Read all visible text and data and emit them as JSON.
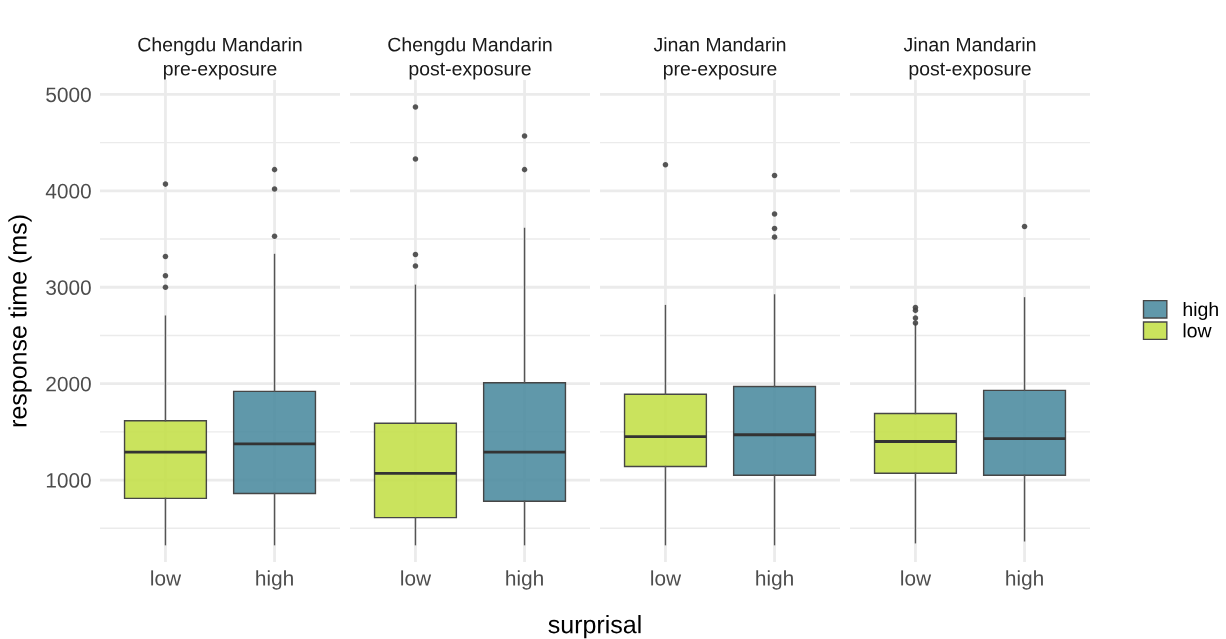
{
  "chart_data": [
    {
      "type": "box",
      "title": "Chengdu Mandarin",
      "subtitle": "pre-exposure",
      "ylabel": "response time (ms)",
      "categories": [
        "low",
        "high"
      ],
      "ylim": [
        150,
        5150
      ],
      "yticks": [
        1000,
        2000,
        3000,
        4000,
        5000
      ],
      "grid": true,
      "tick_labels": "xy",
      "series": [
        {
          "color": "#4f8da1",
          "boxes": [
            null,
            {
              "low": 330,
              "q1": 860,
              "median": 1375,
              "q3": 1920,
              "high": 3340,
              "outliers": [
                3530,
                4020,
                4220
              ]
            }
          ]
        },
        {
          "color": "#c5e04c",
          "boxes": [
            {
              "low": 330,
              "q1": 810,
              "median": 1290,
              "q3": 1615,
              "high": 2700,
              "outliers": [
                3000,
                3120,
                3320,
                4070
              ]
            },
            null
          ]
        }
      ]
    },
    {
      "type": "box",
      "title": "Chengdu Mandarin",
      "subtitle": "post-exposure",
      "xlabel": "surprisal",
      "categories": [
        "low",
        "high"
      ],
      "ylim": [
        150,
        5150
      ],
      "yticks": [
        1000,
        2000,
        3000,
        4000,
        5000
      ],
      "grid": true,
      "tick_labels": "x",
      "series": [
        {
          "color": "#4f8da1",
          "boxes": [
            null,
            {
              "low": 330,
              "q1": 780,
              "median": 1290,
              "q3": 2010,
              "high": 3610,
              "outliers": [
                4220,
                4570
              ]
            }
          ]
        },
        {
          "color": "#c5e04c",
          "boxes": [
            {
              "low": 330,
              "q1": 610,
              "median": 1070,
              "q3": 1590,
              "high": 3020,
              "outliers": [
                3220,
                3340,
                4330,
                4870
              ]
            },
            null
          ]
        }
      ]
    },
    {
      "type": "box",
      "title": "Jinan Mandarin",
      "subtitle": "pre-exposure",
      "categories": [
        "low",
        "high"
      ],
      "ylim": [
        150,
        5150
      ],
      "yticks": [
        1000,
        2000,
        3000,
        4000,
        5000
      ],
      "grid": true,
      "tick_labels": "x",
      "series": [
        {
          "color": "#4f8da1",
          "boxes": [
            null,
            {
              "low": 330,
              "q1": 1050,
              "median": 1470,
              "q3": 1970,
              "high": 2920,
              "outliers": [
                3520,
                3610,
                3760,
                4160
              ]
            }
          ]
        },
        {
          "color": "#c5e04c",
          "boxes": [
            {
              "low": 330,
              "q1": 1140,
              "median": 1450,
              "q3": 1890,
              "high": 2810,
              "outliers": [
                4270
              ]
            },
            null
          ]
        }
      ]
    },
    {
      "type": "box",
      "title": "Jinan Mandarin",
      "subtitle": "post-exposure",
      "categories": [
        "low",
        "high"
      ],
      "ylim": [
        150,
        5150
      ],
      "yticks": [
        1000,
        2000,
        3000,
        4000,
        5000
      ],
      "grid": true,
      "tick_labels": "x",
      "legend": "right",
      "series": [
        {
          "name": "high",
          "color": "#4f8da1",
          "boxes": [
            null,
            {
              "low": 370,
              "q1": 1050,
              "median": 1430,
              "q3": 1930,
              "high": 2890,
              "outliers": [
                3630
              ]
            }
          ]
        },
        {
          "name": "low",
          "color": "#c5e04c",
          "boxes": [
            {
              "low": 350,
              "q1": 1070,
              "median": 1400,
              "q3": 1690,
              "high": 2620,
              "outliers": [
                2630,
                2680,
                2760,
                2790
              ]
            },
            null
          ]
        }
      ]
    }
  ]
}
